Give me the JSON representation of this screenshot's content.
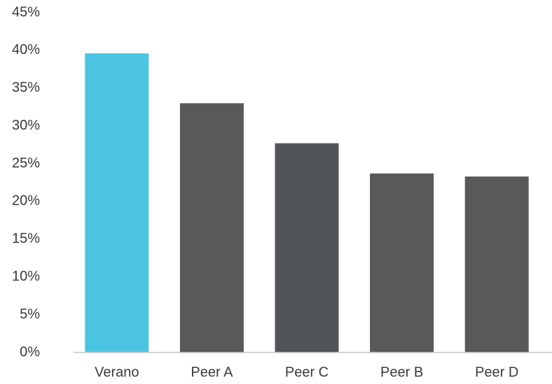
{
  "chart_data": {
    "type": "bar",
    "title": "",
    "xlabel": "",
    "ylabel": "",
    "categories": [
      "Verano",
      "Peer A",
      "Peer C",
      "Peer B",
      "Peer D"
    ],
    "values": [
      39.6,
      33.0,
      27.7,
      23.7,
      23.3
    ],
    "bar_colors": [
      "#4bc4e4",
      "#595959",
      "#525558",
      "#595959",
      "#595959"
    ],
    "ylim": [
      0,
      45
    ],
    "yticks": [
      0,
      5,
      10,
      15,
      20,
      25,
      30,
      35,
      40,
      45
    ],
    "ytick_labels": [
      "0%",
      "5%",
      "10%",
      "15%",
      "20%",
      "25%",
      "30%",
      "35%",
      "40%",
      "45%"
    ],
    "grid": false,
    "legend": "none"
  }
}
